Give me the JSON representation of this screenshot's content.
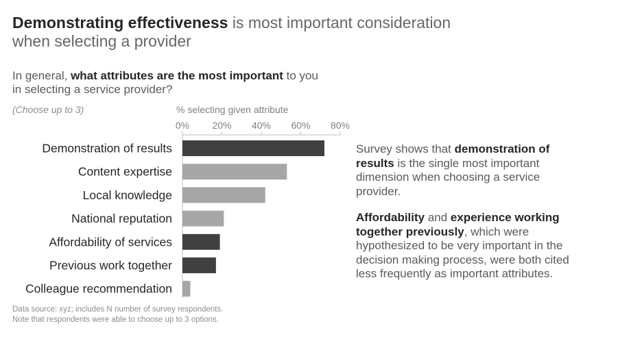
{
  "title": {
    "bold": "Demonstrating effectiveness",
    "rest": " is most important consideration when selecting a provider"
  },
  "question": {
    "prefix": "In general, ",
    "bold": "what attributes are the most important",
    "rest": " to you in selecting a service provider?"
  },
  "choose_note": "(Choose up to 3)",
  "commentary": {
    "p1_prefix": "Survey shows that ",
    "p1_bold": "demonstration of results",
    "p1_rest": " is the single most important dimension when choosing a service provider.",
    "p2_bold1": "Affordability",
    "p2_mid": " and ",
    "p2_bold2": "experience working together previously",
    "p2_rest": ", which were hypothesized to be very important in the decision making process, were both cited less frequently as important attributes."
  },
  "footnote": {
    "line1": "Data source: xyz; includes N number of survey respondents.",
    "line2": "Note that respondents were able to choose up to 3 options."
  },
  "colors": {
    "highlight": "#404040",
    "muted": "#a6a6a6",
    "axis": "#bfbfbf",
    "label": "#262626",
    "tick": "#7f7f7f"
  },
  "chart_data": {
    "type": "bar",
    "orientation": "horizontal",
    "title": "",
    "xlabel": "% selecting given attribute",
    "xlim": [
      0,
      80
    ],
    "x_tick_labels": [
      "0%",
      "20%",
      "40%",
      "60%",
      "80%"
    ],
    "x_tick_values": [
      0,
      20,
      40,
      60,
      80
    ],
    "x_axis_position": "top",
    "grid": false,
    "categories": [
      "Demonstration of results",
      "Content expertise",
      "Local knowledge",
      "National reputation",
      "Affordability of services",
      "Previous work together",
      "Colleague recommendation"
    ],
    "values": [
      72,
      53,
      42,
      21,
      19,
      17,
      4
    ],
    "highlighted": [
      true,
      false,
      false,
      false,
      true,
      true,
      false
    ]
  }
}
